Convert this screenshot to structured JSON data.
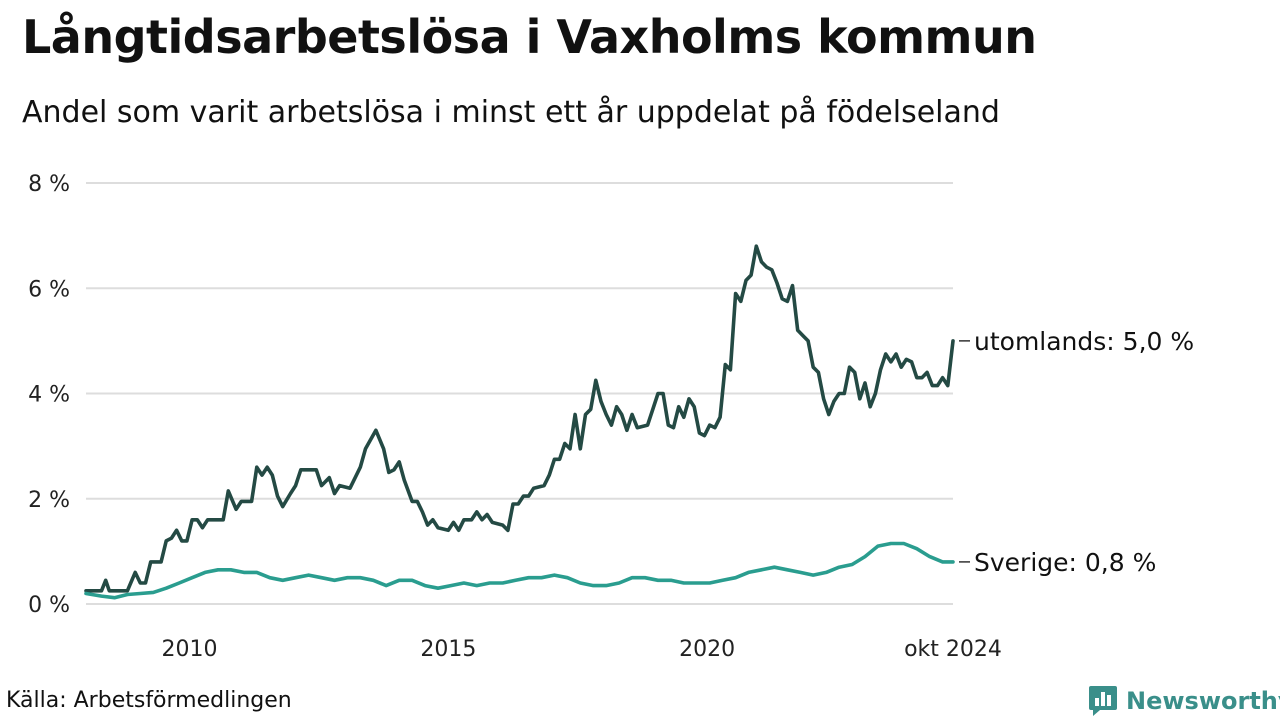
{
  "title": "Långtidsarbetslösa i Vaxholms kommun",
  "subtitle": "Andel som varit arbetslösa i minst ett år uppdelat på födelseland",
  "source": "Källa: Arbetsförmedlingen",
  "brand": {
    "name": "Newsworthy",
    "logo_icon": "bar-chart-speech-bubble-icon",
    "color": "#3a8f8a"
  },
  "chart_data": {
    "type": "line",
    "title": "Långtidsarbetslösa i Vaxholms kommun",
    "xlabel": "",
    "ylabel": "",
    "xlim": [
      2008.0,
      2024.75
    ],
    "ylim": [
      0,
      8
    ],
    "grid": true,
    "x_ticks": [
      {
        "value": 2010,
        "label": "2010"
      },
      {
        "value": 2015,
        "label": "2015"
      },
      {
        "value": 2020,
        "label": "2020"
      },
      {
        "value": 2024.75,
        "label": "okt 2024"
      }
    ],
    "y_ticks": [
      {
        "value": 0,
        "label": "0 %"
      },
      {
        "value": 2,
        "label": "2 %"
      },
      {
        "value": 4,
        "label": "4 %"
      },
      {
        "value": 6,
        "label": "6 %"
      },
      {
        "value": 8,
        "label": "8 %"
      }
    ],
    "series": [
      {
        "name": "utomlands",
        "label": "utomlands: 5,0 %",
        "color": "#244a44",
        "points": [
          [
            2008.0,
            0.25
          ],
          [
            2008.3,
            0.25
          ],
          [
            2008.38,
            0.45
          ],
          [
            2008.45,
            0.25
          ],
          [
            2008.8,
            0.25
          ],
          [
            2008.95,
            0.6
          ],
          [
            2009.05,
            0.4
          ],
          [
            2009.15,
            0.4
          ],
          [
            2009.25,
            0.8
          ],
          [
            2009.45,
            0.8
          ],
          [
            2009.55,
            1.2
          ],
          [
            2009.65,
            1.25
          ],
          [
            2009.75,
            1.4
          ],
          [
            2009.85,
            1.2
          ],
          [
            2009.95,
            1.2
          ],
          [
            2010.05,
            1.6
          ],
          [
            2010.15,
            1.6
          ],
          [
            2010.25,
            1.45
          ],
          [
            2010.35,
            1.6
          ],
          [
            2010.55,
            1.6
          ],
          [
            2010.65,
            1.6
          ],
          [
            2010.75,
            2.15
          ],
          [
            2010.9,
            1.8
          ],
          [
            2011.0,
            1.95
          ],
          [
            2011.2,
            1.95
          ],
          [
            2011.3,
            2.6
          ],
          [
            2011.4,
            2.45
          ],
          [
            2011.5,
            2.6
          ],
          [
            2011.6,
            2.45
          ],
          [
            2011.7,
            2.05
          ],
          [
            2011.8,
            1.85
          ],
          [
            2011.95,
            2.1
          ],
          [
            2012.05,
            2.25
          ],
          [
            2012.15,
            2.55
          ],
          [
            2012.45,
            2.55
          ],
          [
            2012.55,
            2.25
          ],
          [
            2012.7,
            2.4
          ],
          [
            2012.8,
            2.1
          ],
          [
            2012.9,
            2.25
          ],
          [
            2013.1,
            2.2
          ],
          [
            2013.3,
            2.6
          ],
          [
            2013.4,
            2.95
          ],
          [
            2013.6,
            3.3
          ],
          [
            2013.75,
            2.95
          ],
          [
            2013.85,
            2.5
          ],
          [
            2013.95,
            2.55
          ],
          [
            2014.05,
            2.7
          ],
          [
            2014.15,
            2.35
          ],
          [
            2014.3,
            1.95
          ],
          [
            2014.4,
            1.95
          ],
          [
            2014.5,
            1.75
          ],
          [
            2014.6,
            1.5
          ],
          [
            2014.7,
            1.6
          ],
          [
            2014.8,
            1.45
          ],
          [
            2015.0,
            1.4
          ],
          [
            2015.1,
            1.55
          ],
          [
            2015.2,
            1.4
          ],
          [
            2015.3,
            1.6
          ],
          [
            2015.45,
            1.6
          ],
          [
            2015.55,
            1.75
          ],
          [
            2015.65,
            1.6
          ],
          [
            2015.75,
            1.7
          ],
          [
            2015.85,
            1.55
          ],
          [
            2016.05,
            1.5
          ],
          [
            2016.15,
            1.4
          ],
          [
            2016.25,
            1.9
          ],
          [
            2016.35,
            1.9
          ],
          [
            2016.45,
            2.05
          ],
          [
            2016.55,
            2.05
          ],
          [
            2016.65,
            2.2
          ],
          [
            2016.85,
            2.25
          ],
          [
            2016.95,
            2.45
          ],
          [
            2017.05,
            2.75
          ],
          [
            2017.15,
            2.75
          ],
          [
            2017.25,
            3.05
          ],
          [
            2017.35,
            2.95
          ],
          [
            2017.45,
            3.6
          ],
          [
            2017.55,
            2.95
          ],
          [
            2017.65,
            3.6
          ],
          [
            2017.75,
            3.7
          ],
          [
            2017.85,
            4.25
          ],
          [
            2017.95,
            3.85
          ],
          [
            2018.05,
            3.6
          ],
          [
            2018.15,
            3.4
          ],
          [
            2018.25,
            3.75
          ],
          [
            2018.35,
            3.6
          ],
          [
            2018.45,
            3.3
          ],
          [
            2018.55,
            3.6
          ],
          [
            2018.65,
            3.35
          ],
          [
            2018.85,
            3.4
          ],
          [
            2018.95,
            3.7
          ],
          [
            2019.05,
            4.0
          ],
          [
            2019.15,
            4.0
          ],
          [
            2019.25,
            3.4
          ],
          [
            2019.35,
            3.35
          ],
          [
            2019.45,
            3.75
          ],
          [
            2019.55,
            3.55
          ],
          [
            2019.65,
            3.9
          ],
          [
            2019.75,
            3.75
          ],
          [
            2019.85,
            3.25
          ],
          [
            2019.95,
            3.2
          ],
          [
            2020.05,
            3.4
          ],
          [
            2020.15,
            3.35
          ],
          [
            2020.25,
            3.55
          ],
          [
            2020.35,
            4.55
          ],
          [
            2020.45,
            4.45
          ],
          [
            2020.55,
            5.9
          ],
          [
            2020.65,
            5.75
          ],
          [
            2020.75,
            6.15
          ],
          [
            2020.85,
            6.25
          ],
          [
            2020.95,
            6.8
          ],
          [
            2021.05,
            6.5
          ],
          [
            2021.15,
            6.4
          ],
          [
            2021.25,
            6.35
          ],
          [
            2021.35,
            6.1
          ],
          [
            2021.45,
            5.8
          ],
          [
            2021.55,
            5.75
          ],
          [
            2021.65,
            6.05
          ],
          [
            2021.75,
            5.2
          ],
          [
            2021.85,
            5.1
          ],
          [
            2021.95,
            5.0
          ],
          [
            2022.05,
            4.5
          ],
          [
            2022.15,
            4.4
          ],
          [
            2022.25,
            3.9
          ],
          [
            2022.35,
            3.6
          ],
          [
            2022.45,
            3.85
          ],
          [
            2022.55,
            4.0
          ],
          [
            2022.65,
            4.0
          ],
          [
            2022.75,
            4.5
          ],
          [
            2022.85,
            4.4
          ],
          [
            2022.95,
            3.9
          ],
          [
            2023.05,
            4.2
          ],
          [
            2023.15,
            3.75
          ],
          [
            2023.25,
            4.0
          ],
          [
            2023.35,
            4.45
          ],
          [
            2023.45,
            4.75
          ],
          [
            2023.55,
            4.6
          ],
          [
            2023.65,
            4.75
          ],
          [
            2023.75,
            4.5
          ],
          [
            2023.85,
            4.65
          ],
          [
            2023.95,
            4.6
          ],
          [
            2024.05,
            4.3
          ],
          [
            2024.15,
            4.3
          ],
          [
            2024.25,
            4.4
          ],
          [
            2024.35,
            4.15
          ],
          [
            2024.45,
            4.15
          ],
          [
            2024.55,
            4.3
          ],
          [
            2024.65,
            4.15
          ],
          [
            2024.75,
            5.0
          ]
        ]
      },
      {
        "name": "Sverige",
        "label": "Sverige: 0,8 %",
        "color": "#2a9d8f",
        "points": [
          [
            2008.0,
            0.2
          ],
          [
            2008.3,
            0.15
          ],
          [
            2008.55,
            0.12
          ],
          [
            2008.8,
            0.18
          ],
          [
            2009.05,
            0.2
          ],
          [
            2009.3,
            0.22
          ],
          [
            2009.55,
            0.3
          ],
          [
            2009.8,
            0.4
          ],
          [
            2010.05,
            0.5
          ],
          [
            2010.3,
            0.6
          ],
          [
            2010.55,
            0.65
          ],
          [
            2010.8,
            0.65
          ],
          [
            2011.05,
            0.6
          ],
          [
            2011.3,
            0.6
          ],
          [
            2011.55,
            0.5
          ],
          [
            2011.8,
            0.45
          ],
          [
            2012.05,
            0.5
          ],
          [
            2012.3,
            0.55
          ],
          [
            2012.55,
            0.5
          ],
          [
            2012.8,
            0.45
          ],
          [
            2013.05,
            0.5
          ],
          [
            2013.3,
            0.5
          ],
          [
            2013.55,
            0.45
          ],
          [
            2013.8,
            0.35
          ],
          [
            2014.05,
            0.45
          ],
          [
            2014.3,
            0.45
          ],
          [
            2014.55,
            0.35
          ],
          [
            2014.8,
            0.3
          ],
          [
            2015.05,
            0.35
          ],
          [
            2015.3,
            0.4
          ],
          [
            2015.55,
            0.35
          ],
          [
            2015.8,
            0.4
          ],
          [
            2016.05,
            0.4
          ],
          [
            2016.3,
            0.45
          ],
          [
            2016.55,
            0.5
          ],
          [
            2016.8,
            0.5
          ],
          [
            2017.05,
            0.55
          ],
          [
            2017.3,
            0.5
          ],
          [
            2017.55,
            0.4
          ],
          [
            2017.8,
            0.35
          ],
          [
            2018.05,
            0.35
          ],
          [
            2018.3,
            0.4
          ],
          [
            2018.55,
            0.5
          ],
          [
            2018.8,
            0.5
          ],
          [
            2019.05,
            0.45
          ],
          [
            2019.3,
            0.45
          ],
          [
            2019.55,
            0.4
          ],
          [
            2019.8,
            0.4
          ],
          [
            2020.05,
            0.4
          ],
          [
            2020.3,
            0.45
          ],
          [
            2020.55,
            0.5
          ],
          [
            2020.8,
            0.6
          ],
          [
            2021.05,
            0.65
          ],
          [
            2021.3,
            0.7
          ],
          [
            2021.55,
            0.65
          ],
          [
            2021.8,
            0.6
          ],
          [
            2022.05,
            0.55
          ],
          [
            2022.3,
            0.6
          ],
          [
            2022.55,
            0.7
          ],
          [
            2022.8,
            0.75
          ],
          [
            2023.05,
            0.9
          ],
          [
            2023.3,
            1.1
          ],
          [
            2023.55,
            1.15
          ],
          [
            2023.8,
            1.15
          ],
          [
            2024.05,
            1.05
          ],
          [
            2024.3,
            0.9
          ],
          [
            2024.55,
            0.8
          ],
          [
            2024.75,
            0.8
          ]
        ]
      }
    ]
  }
}
